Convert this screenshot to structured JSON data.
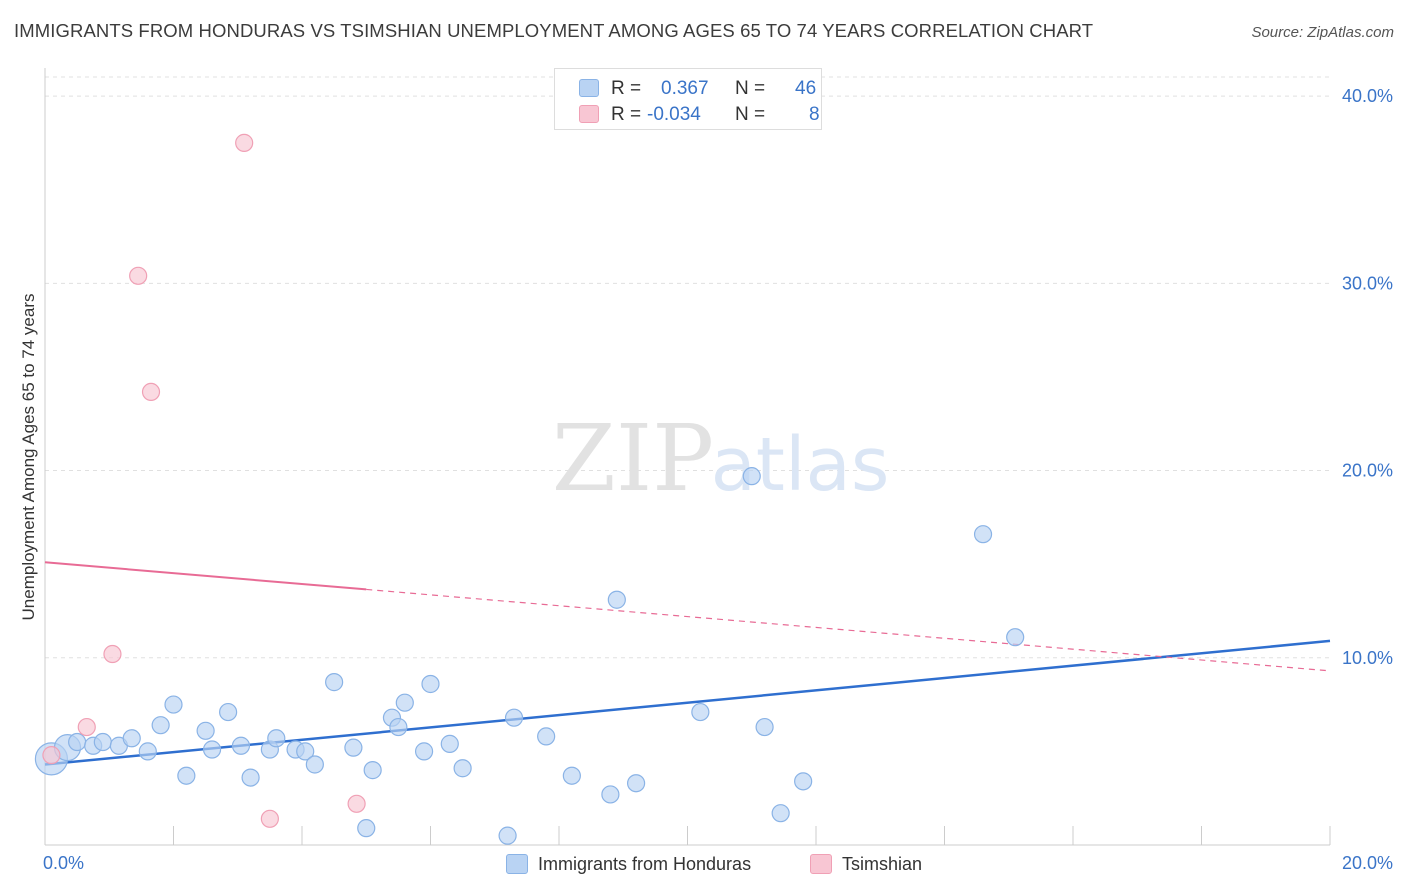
{
  "header": {
    "title": "IMMIGRANTS FROM HONDURAS VS TSIMSHIAN UNEMPLOYMENT AMONG AGES 65 TO 74 YEARS CORRELATION CHART",
    "source": "Source: ZipAtlas.com"
  },
  "watermark": {
    "zip": "ZIP",
    "atlas": "atlas"
  },
  "legend": {
    "r_label": "R =",
    "n_label": "N =",
    "series": [
      {
        "name": "Immigrants from Honduras",
        "r": "0.367",
        "n": "46"
      },
      {
        "name": "Tsimshian",
        "r": "-0.034",
        "n": "8"
      }
    ]
  },
  "colors": {
    "blue_fill": "#b9d3f3",
    "blue_stroke": "#8ab3e6",
    "blue_line": "#2f6fcf",
    "pink_fill": "#f8c6d3",
    "pink_stroke": "#f0a0b5",
    "pink_line": "#e86b95",
    "grid": "#e0e0e0",
    "tick_text": "#3a74c8"
  },
  "chart_data": {
    "type": "scatter",
    "title": "IMMIGRANTS FROM HONDURAS VS TSIMSHIAN UNEMPLOYMENT AMONG AGES 65 TO 74 YEARS CORRELATION CHART",
    "xlabel": "",
    "ylabel": "Unemployment Among Ages 65 to 74 years",
    "xlim": [
      0,
      20
    ],
    "ylim": [
      0,
      41.5
    ],
    "x_tick_labels": [
      "0.0%",
      "20.0%"
    ],
    "y_ticks": [
      10,
      20,
      30,
      40
    ],
    "y_tick_labels": [
      "10.0%",
      "20.0%",
      "30.0%",
      "40.0%"
    ],
    "grid": true,
    "series": [
      {
        "name": "Immigrants from Honduras",
        "points": [
          [
            0.1,
            4.6
          ],
          [
            0.35,
            5.2
          ],
          [
            0.5,
            5.5
          ],
          [
            0.75,
            5.3
          ],
          [
            0.9,
            5.5
          ],
          [
            1.15,
            5.3
          ],
          [
            1.35,
            5.7
          ],
          [
            1.6,
            5.0
          ],
          [
            1.8,
            6.4
          ],
          [
            2.0,
            7.5
          ],
          [
            2.2,
            3.7
          ],
          [
            2.5,
            6.1
          ],
          [
            2.6,
            5.1
          ],
          [
            2.85,
            7.1
          ],
          [
            3.05,
            5.3
          ],
          [
            3.2,
            3.6
          ],
          [
            3.5,
            5.1
          ],
          [
            3.6,
            5.7
          ],
          [
            3.9,
            5.1
          ],
          [
            4.05,
            5.0
          ],
          [
            4.2,
            4.3
          ],
          [
            4.5,
            8.7
          ],
          [
            4.8,
            5.2
          ],
          [
            5.0,
            0.9
          ],
          [
            5.1,
            4.0
          ],
          [
            5.4,
            6.8
          ],
          [
            5.5,
            6.3
          ],
          [
            5.6,
            7.6
          ],
          [
            5.9,
            5.0
          ],
          [
            6.0,
            8.6
          ],
          [
            6.3,
            5.4
          ],
          [
            6.5,
            4.1
          ],
          [
            7.2,
            0.5
          ],
          [
            7.3,
            6.8
          ],
          [
            7.8,
            5.8
          ],
          [
            8.2,
            3.7
          ],
          [
            8.8,
            2.7
          ],
          [
            8.9,
            13.1
          ],
          [
            9.2,
            3.3
          ],
          [
            10.2,
            7.1
          ],
          [
            11.0,
            19.7
          ],
          [
            11.2,
            6.3
          ],
          [
            11.45,
            1.7
          ],
          [
            11.8,
            3.4
          ],
          [
            14.6,
            16.6
          ],
          [
            15.1,
            11.1
          ]
        ],
        "trend": {
          "x": [
            0,
            20
          ],
          "y": [
            4.3,
            10.9
          ]
        }
      },
      {
        "name": "Tsimshian",
        "points": [
          [
            0.1,
            4.8
          ],
          [
            0.65,
            6.3
          ],
          [
            1.05,
            10.2
          ],
          [
            1.45,
            30.4
          ],
          [
            1.65,
            24.2
          ],
          [
            3.1,
            37.5
          ],
          [
            3.5,
            1.4
          ],
          [
            4.85,
            2.2
          ]
        ],
        "trend": {
          "x": [
            0,
            20
          ],
          "y": [
            15.1,
            9.3
          ],
          "solid_until_x": 5.0
        }
      }
    ]
  }
}
